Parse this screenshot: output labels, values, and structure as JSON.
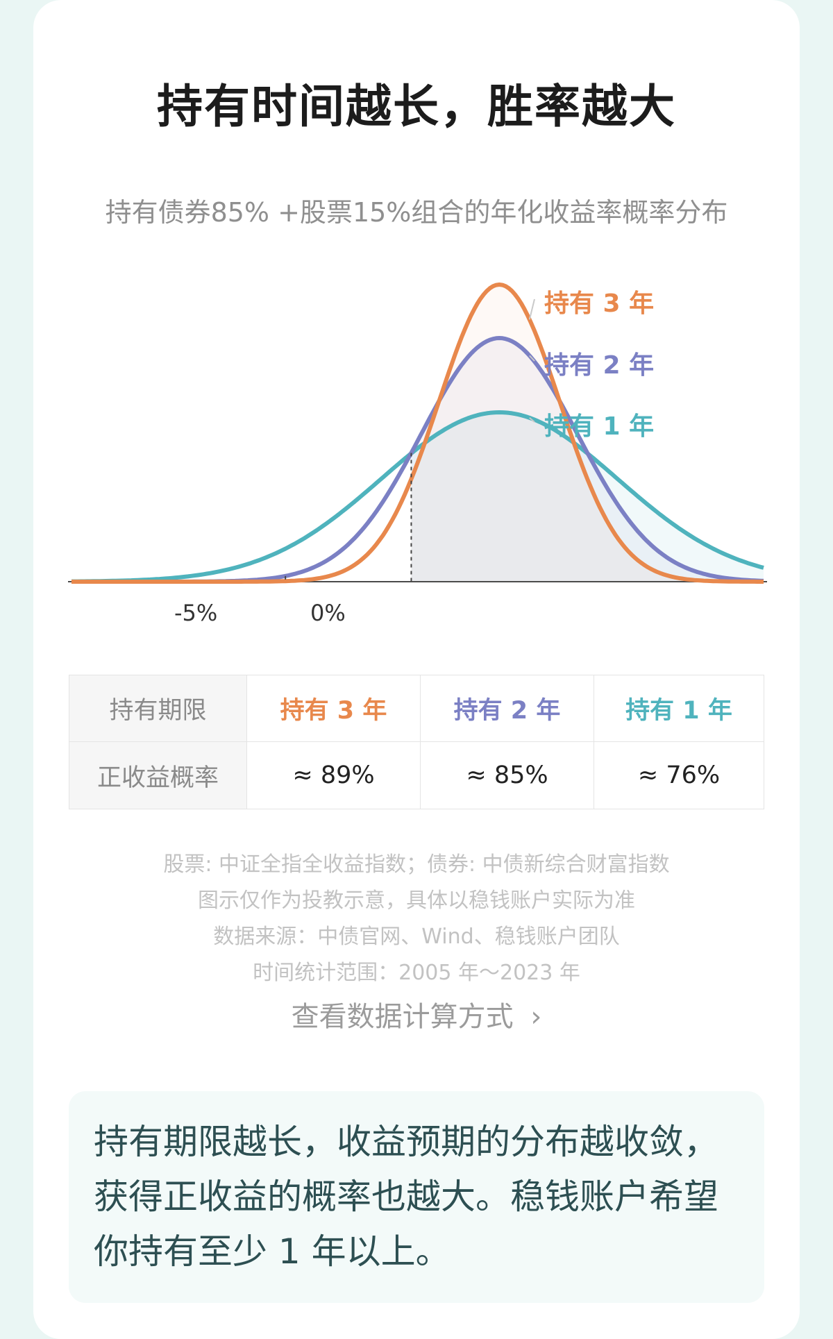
{
  "title": "持有时间越长，胜率越大",
  "subtitle": "持有债券85% +股票15%组合的年化收益率概率分布",
  "colors": {
    "y3": "#e8884c",
    "y2": "#7b80c4",
    "y1": "#4fb3bd"
  },
  "chart_data": {
    "type": "area",
    "title": "持有债券85% +股票15%组合的年化收益率概率分布",
    "x_ticks": [
      "-5%",
      "0%"
    ],
    "series": [
      {
        "name": "持有 3 年",
        "mean": 3.5,
        "sd": 2.4,
        "peak": 1.0
      },
      {
        "name": "持有 2 年",
        "mean": 3.5,
        "sd": 3.1,
        "peak": 0.82
      },
      {
        "name": "持有 1 年",
        "mean": 3.5,
        "sd": 4.7,
        "peak": 0.57
      }
    ],
    "markers": [
      -5,
      0
    ],
    "xlim": [
      -13.5,
      14.0
    ],
    "grid": false
  },
  "table": {
    "row1": {
      "label": "持有期限",
      "c1": "持有 3 年",
      "c2": "持有 2 年",
      "c3": "持有 1 年"
    },
    "row2": {
      "label": "正收益概率",
      "c1": "≈ 89%",
      "c2": "≈ 85%",
      "c3": "≈ 76%"
    }
  },
  "notes": [
    "股票: 中证全指全收益指数；债券: 中债新综合财富指数",
    "图示仅作为投教示意，具体以稳钱账户实际为准",
    "数据来源：中债官网、Wind、稳钱账户团队",
    "时间统计范围：2005 年～2023 年"
  ],
  "link_label": "查看数据计算方式",
  "link_arrow": "›",
  "summary": "持有期限越长，收益预期的分布越收敛，获得正收益的概率也越大。稳钱账户希望你持有至少 1 年以上。"
}
